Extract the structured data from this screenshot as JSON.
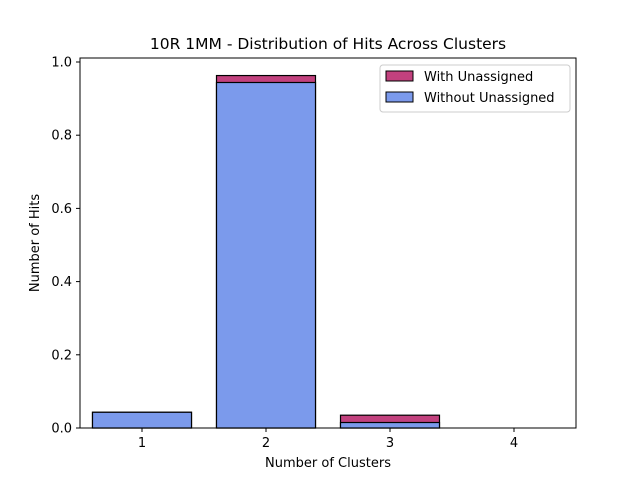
{
  "chart_data": {
    "type": "bar",
    "stacking": "overlay",
    "title": "10R 1MM - Distribution of Hits Across Clusters",
    "xlabel": "Number of Clusters",
    "ylabel": "Number of Hits",
    "categories": [
      "1",
      "2",
      "3",
      "4"
    ],
    "ylim": [
      0,
      1.0
    ],
    "yticks": [
      "0.0",
      "0.2",
      "0.4",
      "0.6",
      "0.8",
      "1.0"
    ],
    "grid": false,
    "legend_position": "top-right",
    "series": [
      {
        "name": "With Unassigned",
        "values": [
          0.043,
          0.963,
          0.035,
          0.0
        ],
        "color": "#c2417e"
      },
      {
        "name": "Without Unassigned",
        "values": [
          0.043,
          0.944,
          0.015,
          0.0
        ],
        "color": "#7b9aec"
      }
    ]
  }
}
